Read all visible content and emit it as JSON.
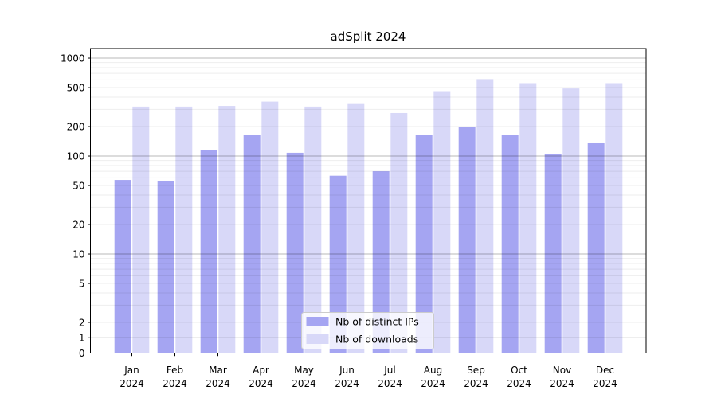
{
  "chart_data": {
    "type": "bar",
    "title": "adSplit 2024",
    "year_line": "2024",
    "categories": [
      "Jan",
      "Feb",
      "Mar",
      "Apr",
      "May",
      "Jun",
      "Jul",
      "Aug",
      "Sep",
      "Oct",
      "Nov",
      "Dec"
    ],
    "series": [
      {
        "name": "Nb of distinct IPs",
        "color": "#a5a5f2",
        "values": [
          57,
          55,
          115,
          165,
          108,
          63,
          70,
          163,
          200,
          163,
          105,
          135
        ]
      },
      {
        "name": "Nb of downloads",
        "color": "#d8d8f8",
        "values": [
          320,
          320,
          325,
          360,
          320,
          340,
          275,
          460,
          610,
          555,
          490,
          555
        ]
      }
    ],
    "xlabel": "",
    "ylabel": "",
    "y_scale": "symlog",
    "y_linthresh": 2,
    "ylim": [
      0,
      1250
    ],
    "y_ticks": [
      0,
      1,
      2,
      5,
      10,
      20,
      50,
      100,
      200,
      500,
      1000
    ],
    "y_major_gridline_values": [
      1,
      10,
      100,
      1000
    ],
    "y_minor_gridline_multipliers": [
      2,
      3,
      4,
      5,
      6,
      7,
      8,
      9
    ],
    "grid": true,
    "grid_over_bars": true,
    "legend_position": "lower-center",
    "colors": {
      "axis": "#000000",
      "major_grid": "rgba(0,0,0,0.28)",
      "minor_grid": "rgba(0,0,0,0.07)",
      "legend_border": "#cccccc",
      "legend_fill": "rgba(255,255,255,0.8)",
      "background": "#ffffff"
    }
  }
}
